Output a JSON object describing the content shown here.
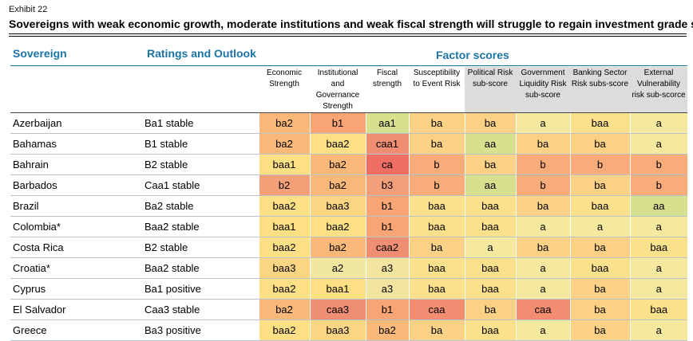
{
  "exhibit": "Exhibit 22",
  "title": "Sovereigns with weak economic growth, moderate institutions and weak fiscal strength will struggle to regain investment grade status",
  "headers": {
    "sovereign": "Sovereign",
    "ratings": "Ratings and Outlook",
    "factor_scores": "Factor scores"
  },
  "colors": {
    "header_blue": "#1b73a6",
    "grey_header": "#dcdcdc",
    "scale": {
      "aa": "#d7e08f",
      "a": "#f5e9a0",
      "baa": "#fbe18b",
      "ba": "#fbd186",
      "b": "#f8ac79",
      "caa": "#f38d72",
      "ca": "#ee6e63",
      "aa1": "#d7e08f",
      "a2": "#f1e7a0",
      "a3": "#f3e5a0",
      "baa1": "#fde084",
      "baa2": "#fde085",
      "baa3": "#fcd583",
      "ba2": "#fbb979",
      "b1": "#f8a475",
      "b2": "#f4a17a",
      "b3": "#f39f79",
      "caa1": "#f08e73",
      "caa2": "#f08e73",
      "caa3": "#f08e73"
    }
  },
  "chart_data": {
    "type": "table",
    "title": "Sovereigns with weak economic growth, moderate institutions and weak fiscal strength will struggle to regain investment grade status",
    "columns": [
      {
        "label": "Economic Strength",
        "grey": false
      },
      {
        "label": "Institutional and Governance Strength",
        "grey": false
      },
      {
        "label": "Fiscal strength",
        "grey": false
      },
      {
        "label": "Susceptibility to Event Risk",
        "grey": false
      },
      {
        "label": "Political Risk sub-score",
        "grey": true
      },
      {
        "label": "Government Liquidity Risk sub-score",
        "grey": true
      },
      {
        "label": "Banking Sector Risk subs-score",
        "grey": true
      },
      {
        "label": "External Vulnerability risk sub-scorce",
        "grey": true
      }
    ],
    "rows": [
      {
        "sovereign": "Azerbaijan",
        "rating": "Ba1 stable",
        "scores": [
          "ba2",
          "b1",
          "aa1",
          "ba",
          "ba",
          "a",
          "baa",
          "a"
        ]
      },
      {
        "sovereign": "Bahamas",
        "rating": "B1 stable",
        "scores": [
          "ba2",
          "baa2",
          "caa1",
          "ba",
          "aa",
          "ba",
          "ba",
          "a"
        ]
      },
      {
        "sovereign": "Bahrain",
        "rating": "B2 stable",
        "scores": [
          "baa1",
          "ba2",
          "ca",
          "b",
          "ba",
          "b",
          "b",
          "b"
        ]
      },
      {
        "sovereign": "Barbados",
        "rating": "Caa1 stable",
        "scores": [
          "b2",
          "ba2",
          "b3",
          "b",
          "aa",
          "b",
          "ba",
          "b"
        ]
      },
      {
        "sovereign": "Brazil",
        "rating": "Ba2 stable",
        "scores": [
          "baa2",
          "baa3",
          "b1",
          "baa",
          "baa",
          "ba",
          "baa",
          "aa"
        ]
      },
      {
        "sovereign": "Colombia*",
        "rating": "Baa2 stable",
        "scores": [
          "baa1",
          "baa2",
          "b1",
          "baa",
          "baa",
          "a",
          "a",
          "a"
        ]
      },
      {
        "sovereign": "Costa Rica",
        "rating": "B2 stable",
        "scores": [
          "baa2",
          "ba2",
          "caa2",
          "ba",
          "a",
          "ba",
          "ba",
          "baa"
        ]
      },
      {
        "sovereign": "Croatia*",
        "rating": "Baa2 stable",
        "scores": [
          "baa3",
          "a2",
          "a3",
          "baa",
          "baa",
          "a",
          "baa",
          "a"
        ]
      },
      {
        "sovereign": "Cyprus",
        "rating": "Ba1 positive",
        "scores": [
          "baa2",
          "baa1",
          "a3",
          "baa",
          "baa",
          "a",
          "ba",
          "a"
        ]
      },
      {
        "sovereign": "El Salvador",
        "rating": "Caa3 stable",
        "scores": [
          "ba2",
          "caa3",
          "b1",
          "caa",
          "ba",
          "caa",
          "ba",
          "baa"
        ]
      },
      {
        "sovereign": "Greece",
        "rating": "Ba3 positive",
        "scores": [
          "baa2",
          "baa3",
          "ba2",
          "ba",
          "baa",
          "a",
          "ba",
          "a"
        ]
      }
    ]
  }
}
